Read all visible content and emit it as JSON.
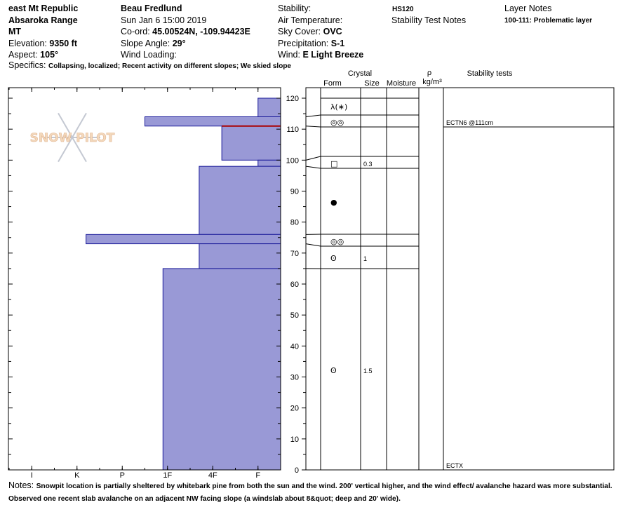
{
  "header": {
    "location": "east Mt Republic",
    "range": "Absaroka Range",
    "state": "MT",
    "elevation_label": "Elevation:",
    "elevation": "9350 ft",
    "aspect_label": "Aspect:",
    "aspect": "105°",
    "observer": "Beau  Fredlund",
    "datetime": "Sun Jan 6 15:00 2019",
    "coord_label": "Co-ord:",
    "coord": "45.00524N, -109.94423E",
    "slope_label": "Slope Angle:",
    "slope": "29°",
    "wind_loading_label": "Wind Loading:",
    "wind_loading": "",
    "stability_label": "Stability:",
    "stability": "",
    "air_temp_label": "Air Temperature:",
    "air_temp": "",
    "sky_label": "Sky Cover:",
    "sky": "OVC",
    "precip_label": "Precipitation:",
    "precip": "S-1",
    "wind_label": "Wind:",
    "wind": "E Light Breeze",
    "hs": "HS120",
    "stability_notes_label": "Stability Test Notes",
    "layer_notes_label": "Layer Notes",
    "layer_note": "100-111: Problematic layer",
    "specifics_label": "Specifics:",
    "specifics": "Collapsing, localized; Recent activity on different slopes; We skied slope"
  },
  "columns": {
    "crystal": "Crystal",
    "form": "Form",
    "size": "Size",
    "moisture": "Moisture",
    "rho": "ρ",
    "density_unit": "kg/m³",
    "stability_tests": "Stability tests"
  },
  "watermark": "SNOW PILOT",
  "notes": {
    "label": "Notes:",
    "text": "Snowpit location is partially sheltered by whitebark pine from both the sun and the wind.  200' vertical higher, and the wind effect/ avalanche hazard was more substantial.  Observed one recent slab avalanche on an adjacent NW facing slope (a windslab about 8&quot; deep and 20' wide)."
  },
  "colors": {
    "hardness_fill": "#9999d6",
    "hardness_stroke": "#1a1a99",
    "critical_layer": "#aa0000"
  },
  "chart_data": {
    "type": "bar",
    "title": "",
    "x_ticks": [
      "I",
      "K",
      "P",
      "1F",
      "4F",
      "F"
    ],
    "hardness_scale_note": "hand hardness, F at right edge to I at left",
    "y_ticks": [
      0,
      10,
      20,
      30,
      40,
      50,
      60,
      70,
      80,
      90,
      100,
      110,
      120
    ],
    "ylim": [
      0,
      120
    ],
    "ylabel": "",
    "layers": [
      {
        "top": 120,
        "bottom": 114,
        "hardness": "F+"
      },
      {
        "top": 114,
        "bottom": 111,
        "hardness": "P"
      },
      {
        "top": 111,
        "bottom": 100,
        "hardness": "4F-"
      },
      {
        "top": 100,
        "bottom": 98,
        "hardness": "F+"
      },
      {
        "top": 98,
        "bottom": 76,
        "hardness": "4F+"
      },
      {
        "top": 76,
        "bottom": 73,
        "hardness": "K-"
      },
      {
        "top": 73,
        "bottom": 65,
        "hardness": "4F+"
      },
      {
        "top": 65,
        "bottom": 0,
        "hardness": "1F-"
      }
    ],
    "hardness_values": [
      0.5,
      3,
      1.3,
      0.5,
      1.8,
      4.3,
      1.8,
      2.6
    ],
    "critical_layer_height": 111,
    "grain_layers": [
      {
        "top": 120,
        "bottom": 114,
        "center": 117,
        "form": "decomposing/precip",
        "symbol": "λ(∗)",
        "size": ""
      },
      {
        "top": 114,
        "bottom": 111,
        "center": 112.5,
        "form": "surface hoar",
        "symbol": "◎◎",
        "size": ""
      },
      {
        "top": 100,
        "bottom": 98,
        "center": 99,
        "form": "faceted",
        "symbol": "□",
        "size": "0.3"
      },
      {
        "top": 98,
        "bottom": 76,
        "center": 87,
        "form": "melt-freeze",
        "symbol": "●",
        "size": ""
      },
      {
        "top": 76,
        "bottom": 73,
        "center": 74.5,
        "form": "surface hoar",
        "symbol": "◎◎",
        "size": ""
      },
      {
        "top": 73,
        "bottom": 65,
        "center": 69,
        "form": "depth hoar",
        "symbol": "ʘ",
        "size": "1"
      },
      {
        "top": 65,
        "bottom": 0,
        "center": 32.5,
        "form": "depth hoar",
        "symbol": "ʘ",
        "size": "1.5"
      }
    ],
    "stability_tests": [
      {
        "label": "ECTN6 @111cm",
        "height": 111
      },
      {
        "label": "ECTX",
        "height": 0
      }
    ]
  }
}
